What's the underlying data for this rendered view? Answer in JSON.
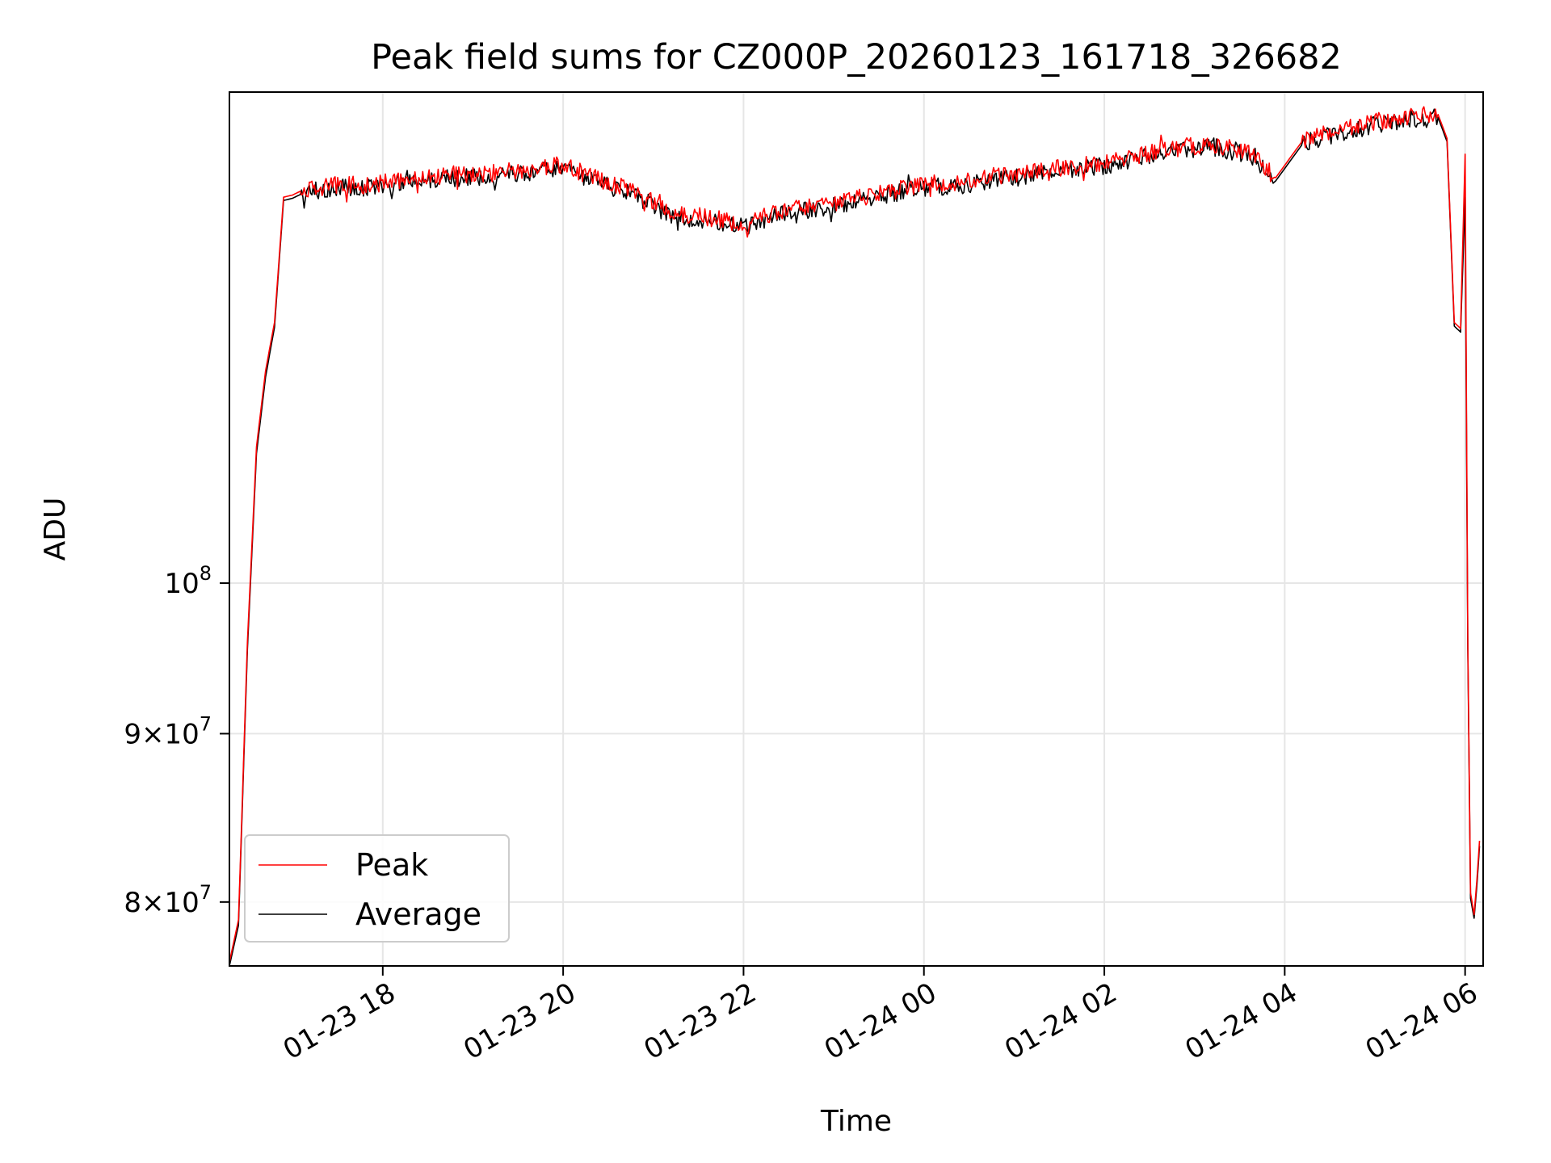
{
  "chart_data": {
    "type": "line",
    "title": "Peak field sums for CZ000P_20260123_161718_326682",
    "xlabel": "Time",
    "ylabel": "ADU",
    "yscale": "log",
    "xlim_hours": [
      -1.7,
      12.2
    ],
    "ylim": [
      76500000,
      141000000
    ],
    "x_ticks": [
      {
        "hour": 0,
        "label": "01-23 18"
      },
      {
        "hour": 2,
        "label": "01-23 20"
      },
      {
        "hour": 4,
        "label": "01-23 22"
      },
      {
        "hour": 6,
        "label": "01-24 00"
      },
      {
        "hour": 8,
        "label": "01-24 02"
      },
      {
        "hour": 10,
        "label": "01-24 04"
      },
      {
        "hour": 12,
        "label": "01-24 06"
      }
    ],
    "y_ticks": [
      {
        "value": 80000000,
        "mantissa": "8",
        "exp": "7",
        "has_mantissa": true
      },
      {
        "value": 90000000,
        "mantissa": "9",
        "exp": "7",
        "has_mantissa": true
      },
      {
        "value": 100000000,
        "mantissa": "",
        "exp": "8",
        "has_mantissa": false
      }
    ],
    "grid": true,
    "legend_position": "lower-left",
    "x_hours": [
      -1.7,
      -1.6,
      -1.5,
      -1.4,
      -1.3,
      -1.2,
      -1.1,
      -1.0,
      -0.9,
      -0.8,
      -0.6,
      -0.4,
      -0.2,
      0.0,
      0.4,
      0.8,
      1.2,
      1.6,
      2.0,
      2.4,
      2.8,
      3.2,
      3.6,
      4.0,
      4.4,
      4.8,
      5.2,
      5.6,
      6.0,
      6.4,
      6.8,
      7.2,
      7.6,
      8.0,
      8.4,
      8.8,
      9.2,
      9.6,
      9.9,
      10.2,
      10.6,
      11.0,
      11.4,
      11.7,
      11.8,
      11.88,
      11.95,
      12.0,
      12.03,
      12.06,
      12.1,
      12.13,
      12.16
    ],
    "series": [
      {
        "name": "Peak",
        "color": "#ff0000",
        "values": [
          76700000,
          79000000,
          96000000,
          110000000,
          116000000,
          120000000,
          131000000,
          131200000,
          131600000,
          131900000,
          132000000,
          132200000,
          132100000,
          132300000,
          132800000,
          133100000,
          133200000,
          133500000,
          134000000,
          132600000,
          131500000,
          129500000,
          129200000,
          128500000,
          129700000,
          130200000,
          130800000,
          131500000,
          132200000,
          132400000,
          132900000,
          133300000,
          133800000,
          134200000,
          134900000,
          135600000,
          136000000,
          135200000,
          132800000,
          136300000,
          137300000,
          138100000,
          138600000,
          138800000,
          136500000,
          120000000,
          119500000,
          135000000,
          96000000,
          80500000,
          79300000,
          81200000,
          83500000
        ]
      },
      {
        "name": "Average",
        "color": "#000000",
        "values": [
          76500000,
          78700000,
          95500000,
          109500000,
          115500000,
          119600000,
          130700000,
          130900000,
          131300000,
          131600000,
          131700000,
          131900000,
          131800000,
          132000000,
          132500000,
          132800000,
          132900000,
          133200000,
          133700000,
          132300000,
          131200000,
          129200000,
          128900000,
          128200000,
          129400000,
          129900000,
          130500000,
          131200000,
          131900000,
          132100000,
          132600000,
          133000000,
          133500000,
          133900000,
          134600000,
          135300000,
          135700000,
          134900000,
          132500000,
          136000000,
          137000000,
          137800000,
          138300000,
          138500000,
          136200000,
          119700000,
          119200000,
          131000000,
          95500000,
          80200000,
          79100000,
          80900000,
          83200000
        ]
      }
    ]
  }
}
